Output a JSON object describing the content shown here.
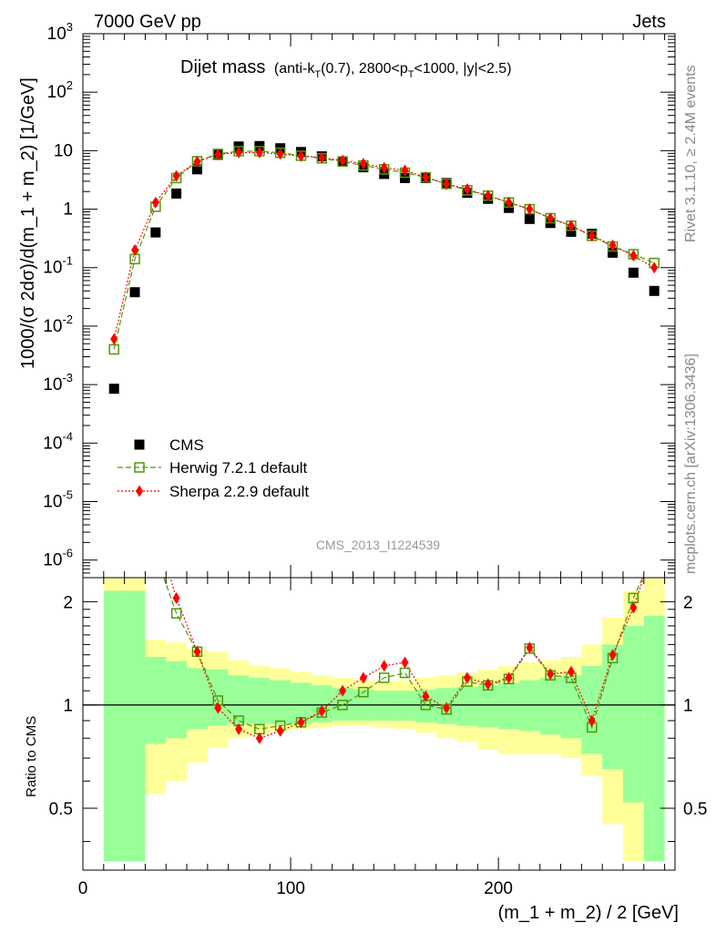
{
  "header": {
    "left_label": "7000 GeV pp",
    "right_label": "Jets"
  },
  "side_labels": {
    "rivet": "Rivet 3.1.10, ≥ 2.4M events",
    "mcplots": "mcplots.cern.ch [arXiv:1306.3436]"
  },
  "analysis_id": "CMS_2013_I1224539",
  "chart_data": {
    "type": "scatter",
    "title": "Dijet mass",
    "title_detail": {
      "prefix": "(anti-k",
      "sub1": "T",
      "mid": "(0.7), 2800<p",
      "sub2": "T",
      "suffix": "<1000, |y|<2.5)"
    },
    "xlabel": "(m_1 + m_2) / 2 [GeV]",
    "ylabel": "1000/(σ 2dσ)/d(m_1 + m_2) [1/GeV]",
    "ratio_ylabel": "Ratio to CMS",
    "xlim": [
      0,
      285
    ],
    "ylim": [
      5e-07,
      1000
    ],
    "yscale": "log",
    "ratio_ylim": [
      0.33,
      2.35
    ],
    "ratio_yscale": "log",
    "x_ticks": [
      0,
      100,
      200
    ],
    "y_tick_exponents": [
      -6,
      -5,
      -4,
      -3,
      -2,
      -1,
      0,
      1,
      2,
      3
    ],
    "y_tick_labels": [
      "10^-6",
      "10^-5",
      "10^-4",
      "10^-3",
      "10^-2",
      "10^-1",
      "1",
      "10",
      "10^2",
      "10^3"
    ],
    "ratio_ticks": [
      0.5,
      1,
      2
    ],
    "ratio_tick_labels": [
      "0.5",
      "1",
      "2"
    ],
    "legend_position": "bottom-left",
    "x": [
      15,
      25,
      35,
      45,
      55,
      65,
      75,
      85,
      95,
      105,
      115,
      125,
      135,
      145,
      155,
      165,
      175,
      185,
      195,
      205,
      215,
      225,
      235,
      245,
      255,
      265,
      275
    ],
    "series": [
      {
        "name": "CMS",
        "marker": "square",
        "color": "#000000",
        "values": [
          0.00085,
          0.038,
          0.4,
          1.85,
          4.8,
          8.5,
          11.8,
          12.0,
          11.0,
          9.5,
          8.0,
          6.6,
          5.2,
          4.0,
          3.4,
          3.4,
          2.8,
          1.9,
          1.5,
          1.05,
          0.68,
          0.58,
          0.41,
          0.38,
          0.18,
          0.082,
          0.04
        ],
        "band_green": [
          [
            0.35,
            2.15
          ],
          [
            0.35,
            2.15
          ],
          [
            0.77,
            1.38
          ],
          [
            0.8,
            1.34
          ],
          [
            0.85,
            1.28
          ],
          [
            0.87,
            1.27
          ],
          [
            0.88,
            1.22
          ],
          [
            0.88,
            1.2
          ],
          [
            0.88,
            1.18
          ],
          [
            0.88,
            1.16
          ],
          [
            0.89,
            1.14
          ],
          [
            0.9,
            1.12
          ],
          [
            0.9,
            1.11
          ],
          [
            0.9,
            1.1
          ],
          [
            0.9,
            1.1
          ],
          [
            0.89,
            1.11
          ],
          [
            0.88,
            1.12
          ],
          [
            0.87,
            1.13
          ],
          [
            0.86,
            1.14
          ],
          [
            0.85,
            1.16
          ],
          [
            0.84,
            1.18
          ],
          [
            0.82,
            1.2
          ],
          [
            0.8,
            1.22
          ],
          [
            0.72,
            1.3
          ],
          [
            0.65,
            1.5
          ],
          [
            0.52,
            1.7
          ],
          [
            0.35,
            1.82
          ]
        ],
        "band_yellow": [
          [
            0.35,
            2.35
          ],
          [
            0.35,
            2.35
          ],
          [
            0.55,
            1.55
          ],
          [
            0.6,
            1.52
          ],
          [
            0.68,
            1.45
          ],
          [
            0.75,
            1.43
          ],
          [
            0.8,
            1.35
          ],
          [
            0.82,
            1.3
          ],
          [
            0.84,
            1.28
          ],
          [
            0.85,
            1.25
          ],
          [
            0.86,
            1.22
          ],
          [
            0.87,
            1.2
          ],
          [
            0.87,
            1.18
          ],
          [
            0.86,
            1.17
          ],
          [
            0.85,
            1.18
          ],
          [
            0.83,
            1.2
          ],
          [
            0.8,
            1.22
          ],
          [
            0.78,
            1.24
          ],
          [
            0.74,
            1.27
          ],
          [
            0.72,
            1.3
          ],
          [
            0.72,
            1.33
          ],
          [
            0.72,
            1.35
          ],
          [
            0.7,
            1.38
          ],
          [
            0.62,
            1.5
          ],
          [
            0.45,
            1.8
          ],
          [
            0.35,
            2.15
          ],
          [
            0.35,
            2.35
          ]
        ]
      },
      {
        "name": "Herwig 7.2.1 default",
        "marker": "open-square",
        "line": "dashed",
        "color": "#4e9a06",
        "values": [
          0.004,
          0.14,
          1.1,
          3.4,
          6.6,
          8.8,
          9.8,
          9.8,
          9.2,
          8.2,
          7.4,
          6.5,
          5.6,
          4.8,
          4.2,
          3.5,
          2.7,
          2.1,
          1.7,
          1.3,
          1.0,
          0.7,
          0.52,
          0.35,
          0.23,
          0.17,
          0.12
        ],
        "ratio": [
          4.7,
          3.68,
          2.75,
          1.85,
          1.43,
          1.03,
          0.9,
          0.85,
          0.87,
          0.89,
          0.95,
          1.0,
          1.09,
          1.2,
          1.24,
          1.0,
          0.97,
          1.17,
          1.14,
          1.19,
          1.46,
          1.22,
          1.2,
          0.86,
          1.37,
          2.05,
          2.8
        ]
      },
      {
        "name": "Sherpa 2.2.9 default",
        "marker": "diamond",
        "line": "dotted",
        "color": "#ff0000",
        "values": [
          0.006,
          0.2,
          1.3,
          3.7,
          6.5,
          8.6,
          9.3,
          9.3,
          8.8,
          8.1,
          7.6,
          6.8,
          6.0,
          5.1,
          4.6,
          3.5,
          2.7,
          2.2,
          1.7,
          1.3,
          1.0,
          0.7,
          0.52,
          0.35,
          0.24,
          0.16,
          0.1
        ],
        "ratio": [
          7.0,
          5.3,
          3.25,
          2.05,
          1.43,
          0.98,
          0.85,
          0.8,
          0.84,
          0.89,
          0.96,
          1.1,
          1.2,
          1.3,
          1.33,
          1.06,
          0.98,
          1.2,
          1.15,
          1.2,
          1.47,
          1.23,
          1.25,
          0.9,
          1.4,
          1.92,
          2.9
        ]
      }
    ]
  }
}
